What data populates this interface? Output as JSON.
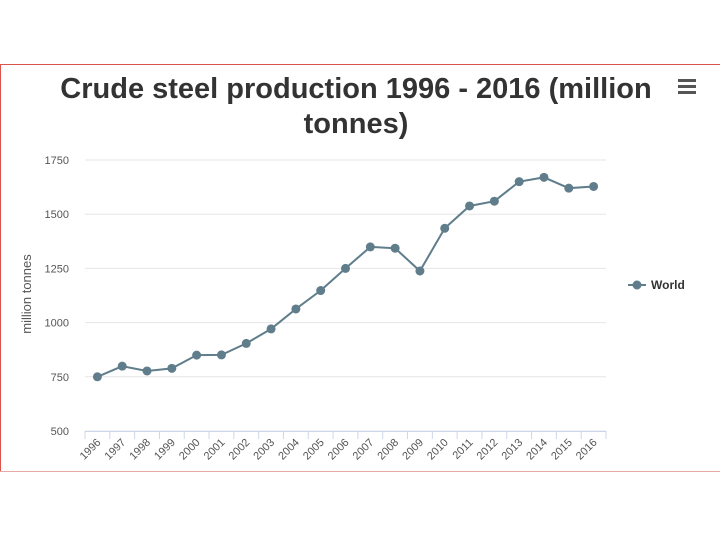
{
  "menu": {
    "icon": "hamburger-menu-icon"
  },
  "chart_data": {
    "type": "line",
    "title_lines": [
      "Crude steel production 1996 - 2016 (million",
      "tonnes)"
    ],
    "xlabel": "",
    "ylabel": "million tonnes",
    "categories": [
      "1996",
      "1997",
      "1998",
      "1999",
      "2000",
      "2001",
      "2002",
      "2003",
      "2004",
      "2005",
      "2006",
      "2007",
      "2008",
      "2009",
      "2010",
      "2011",
      "2012",
      "2013",
      "2014",
      "2015",
      "2016"
    ],
    "series": [
      {
        "name": "World",
        "color": "#607d8b",
        "values": [
          750,
          799,
          777,
          789,
          850,
          851,
          904,
          971,
          1063,
          1148,
          1250,
          1349,
          1343,
          1238,
          1435,
          1538,
          1560,
          1650,
          1670,
          1620,
          1628
        ]
      }
    ],
    "yticks": [
      500,
      750,
      1000,
      1250,
      1500,
      1750
    ],
    "ylim": [
      500,
      1750
    ],
    "grid": true,
    "legend_position": "right"
  }
}
